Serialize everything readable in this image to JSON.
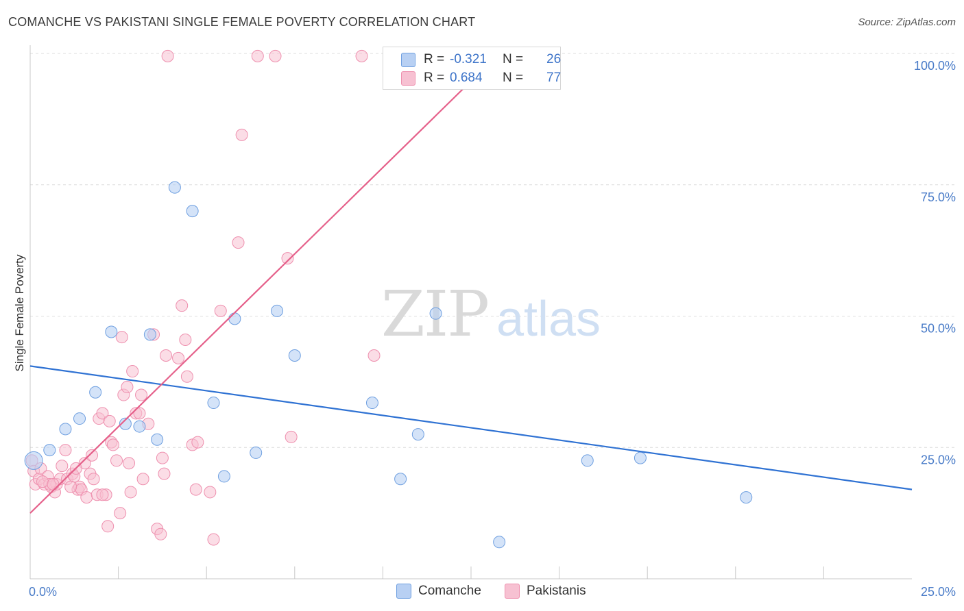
{
  "header": {
    "title": "COMANCHE VS PAKISTANI SINGLE FEMALE POVERTY CORRELATION CHART",
    "source": "Source: ZipAtlas.com"
  },
  "watermark": {
    "zip": "ZIP",
    "atlas": "atlas"
  },
  "colors": {
    "blue_fill": "#b8d0f3",
    "blue_stroke": "#6e9fe0",
    "blue_line": "#2f72d3",
    "pink_fill": "#f7c1d2",
    "pink_stroke": "#ee8fae",
    "pink_line": "#e5608a",
    "tick_text": "#4a7cc8"
  },
  "legend": {
    "rows": [
      {
        "r_label": "R =",
        "r_value": "-0.321",
        "n_label": "N =",
        "n_value": "26",
        "series": "Comanche"
      },
      {
        "r_label": "R =",
        "r_value": "0.684",
        "n_label": "N =",
        "n_value": "77",
        "series": "Pakistanis"
      }
    ]
  },
  "bottom_legend": [
    {
      "label": "Comanche"
    },
    {
      "label": "Pakistanis"
    }
  ],
  "chart_data": {
    "type": "scatter",
    "title": "COMANCHE VS PAKISTANI SINGLE FEMALE POVERTY CORRELATION CHART",
    "xlabel": "",
    "ylabel": "Single Female Poverty",
    "xlim": [
      0,
      25
    ],
    "ylim": [
      0,
      100
    ],
    "x_tick_labels": [
      "0.0%",
      "25.0%"
    ],
    "y_tick_labels": [
      "25.0%",
      "50.0%",
      "75.0%",
      "100.0%"
    ],
    "y_ticks": [
      25,
      50,
      75,
      100
    ],
    "grid": true,
    "legend_position": "top-center",
    "series": [
      {
        "name": "Comanche",
        "color": "#6e9fe0",
        "points": [
          [
            0.1,
            22.5
          ],
          [
            0.55,
            24.5
          ],
          [
            1.0,
            28.5
          ],
          [
            1.4,
            30.5
          ],
          [
            1.85,
            35.5
          ],
          [
            2.3,
            47.0
          ],
          [
            2.7,
            29.5
          ],
          [
            3.1,
            29.0
          ],
          [
            3.4,
            46.5
          ],
          [
            3.6,
            26.5
          ],
          [
            4.1,
            74.5
          ],
          [
            4.6,
            70.0
          ],
          [
            5.2,
            33.5
          ],
          [
            5.5,
            19.5
          ],
          [
            5.8,
            49.5
          ],
          [
            6.4,
            24.0
          ],
          [
            7.0,
            51.0
          ],
          [
            7.5,
            42.5
          ],
          [
            9.7,
            33.5
          ],
          [
            10.5,
            19.0
          ],
          [
            11.0,
            27.5
          ],
          [
            11.5,
            50.5
          ],
          [
            13.3,
            7.0
          ],
          [
            15.8,
            22.5
          ],
          [
            17.3,
            23.0
          ],
          [
            20.3,
            15.5
          ]
        ],
        "trend": {
          "x": [
            0,
            25
          ],
          "y": [
            40.5,
            17.0
          ]
        }
      },
      {
        "name": "Pakistanis",
        "color": "#ee8fae",
        "points": [
          [
            0.05,
            22.5
          ],
          [
            0.1,
            20.5
          ],
          [
            0.15,
            18.0
          ],
          [
            0.25,
            19.0
          ],
          [
            0.3,
            21.0
          ],
          [
            0.4,
            18.0
          ],
          [
            0.5,
            19.5
          ],
          [
            0.6,
            17.5
          ],
          [
            0.7,
            16.5
          ],
          [
            0.75,
            18.0
          ],
          [
            0.85,
            19.0
          ],
          [
            0.9,
            21.5
          ],
          [
            1.0,
            24.5
          ],
          [
            1.05,
            19.0
          ],
          [
            1.2,
            20.0
          ],
          [
            1.25,
            19.5
          ],
          [
            1.35,
            17.0
          ],
          [
            1.4,
            17.5
          ],
          [
            1.45,
            17.0
          ],
          [
            1.55,
            22.0
          ],
          [
            1.6,
            15.5
          ],
          [
            1.7,
            20.0
          ],
          [
            1.75,
            23.5
          ],
          [
            1.8,
            19.0
          ],
          [
            1.9,
            16.0
          ],
          [
            1.95,
            30.5
          ],
          [
            2.05,
            31.5
          ],
          [
            2.15,
            16.0
          ],
          [
            2.2,
            10.0
          ],
          [
            2.25,
            30.0
          ],
          [
            2.3,
            26.0
          ],
          [
            2.35,
            25.5
          ],
          [
            2.45,
            22.5
          ],
          [
            2.55,
            12.5
          ],
          [
            2.6,
            46.0
          ],
          [
            2.65,
            35.0
          ],
          [
            2.75,
            36.5
          ],
          [
            2.8,
            22.0
          ],
          [
            2.85,
            16.5
          ],
          [
            2.9,
            39.5
          ],
          [
            3.0,
            31.5
          ],
          [
            3.1,
            31.5
          ],
          [
            3.15,
            35.0
          ],
          [
            3.2,
            19.0
          ],
          [
            3.35,
            29.5
          ],
          [
            3.5,
            46.5
          ],
          [
            3.6,
            9.5
          ],
          [
            3.7,
            8.5
          ],
          [
            3.75,
            23.0
          ],
          [
            3.8,
            20.0
          ],
          [
            3.85,
            42.5
          ],
          [
            3.9,
            99.5
          ],
          [
            4.2,
            42.0
          ],
          [
            4.3,
            52.0
          ],
          [
            4.4,
            45.5
          ],
          [
            4.45,
            38.5
          ],
          [
            4.6,
            25.5
          ],
          [
            4.7,
            17.0
          ],
          [
            4.75,
            26.0
          ],
          [
            5.1,
            16.5
          ],
          [
            5.2,
            7.5
          ],
          [
            5.4,
            51.0
          ],
          [
            5.9,
            64.0
          ],
          [
            6.0,
            84.5
          ],
          [
            6.45,
            99.5
          ],
          [
            6.95,
            99.5
          ],
          [
            7.3,
            61.0
          ],
          [
            7.4,
            27.0
          ],
          [
            9.4,
            99.5
          ],
          [
            9.75,
            42.5
          ],
          [
            0.55,
            18.0
          ],
          [
            1.15,
            17.5
          ],
          [
            0.35,
            18.5
          ],
          [
            0.65,
            18.0
          ],
          [
            1.3,
            21.0
          ],
          [
            2.05,
            16.0
          ],
          [
            12.0,
            99.5
          ]
        ],
        "trend": {
          "x": [
            0,
            13.3
          ],
          "y": [
            12.5,
            100
          ]
        }
      }
    ]
  }
}
